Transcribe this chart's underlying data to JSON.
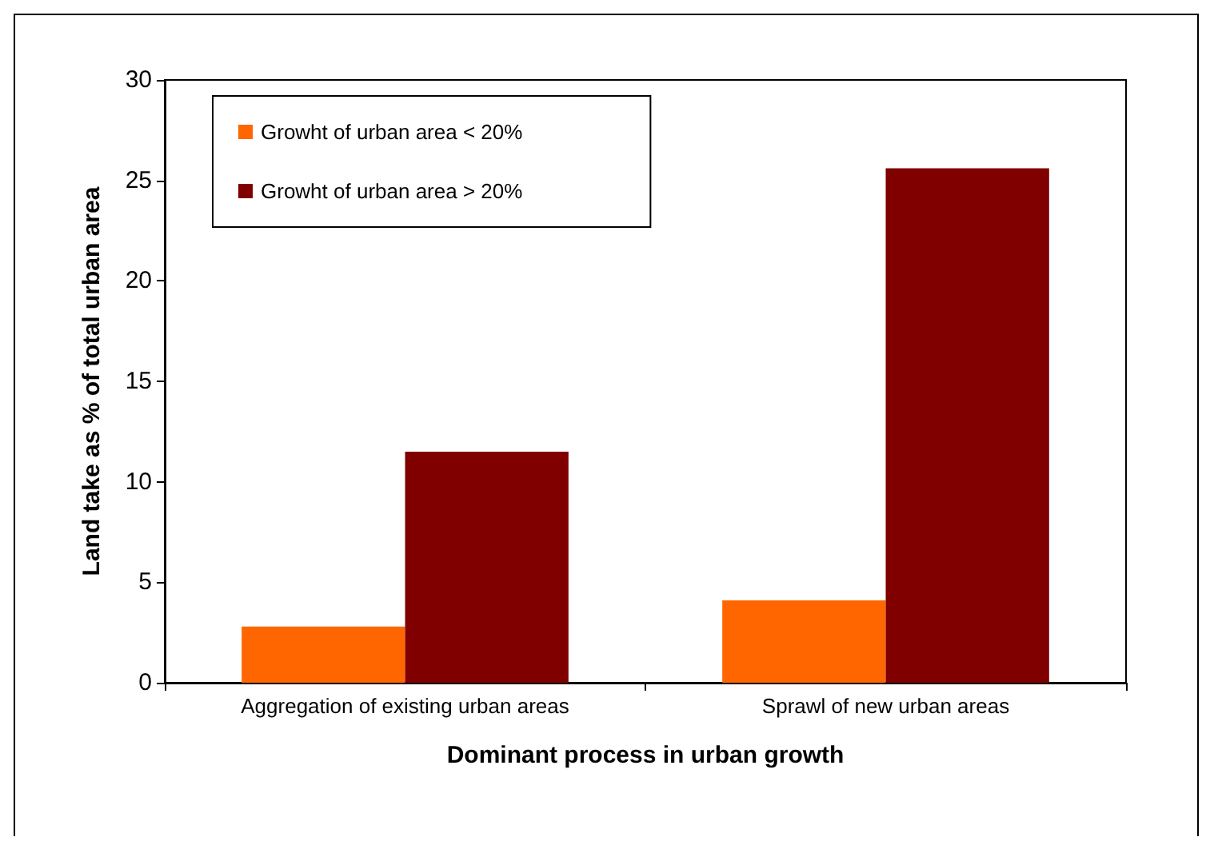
{
  "chart_data": {
    "type": "bar",
    "xlabel": "Dominant process in urban growth",
    "ylabel": "Land take as % of total urban area",
    "categories": [
      "Aggregation of existing urban areas",
      "Sprawl of new urban areas"
    ],
    "series": [
      {
        "name": "Growht of urban area < 20%",
        "color": "#ff6600",
        "values": [
          2.8,
          4.1
        ]
      },
      {
        "name": "Growht of urban area > 20%",
        "color": "#800000",
        "values": [
          11.5,
          25.6
        ]
      }
    ],
    "ylim": [
      0,
      30
    ],
    "yticks": [
      0,
      5,
      10,
      15,
      20,
      25,
      30
    ],
    "grid": false,
    "legend": "top left"
  }
}
